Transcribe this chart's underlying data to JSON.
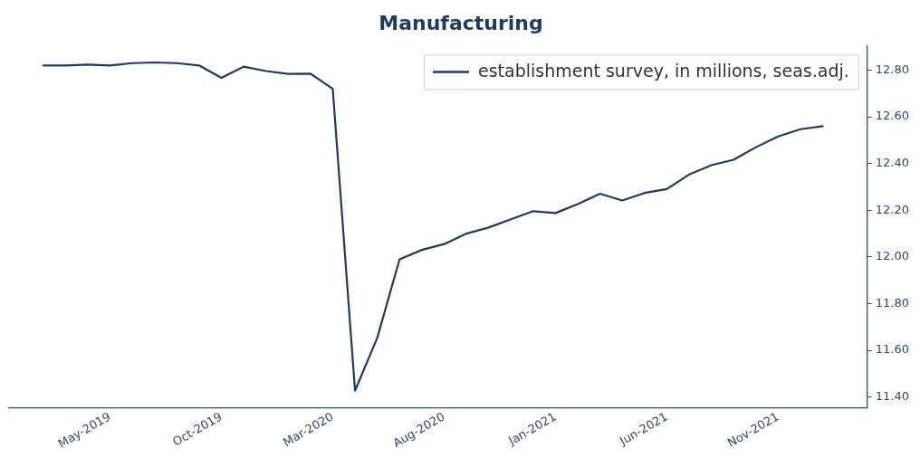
{
  "chart_data": {
    "type": "line",
    "title": "Manufacturing",
    "x": [
      "2019-02",
      "2019-03",
      "2019-04",
      "2019-05",
      "2019-06",
      "2019-07",
      "2019-08",
      "2019-09",
      "2019-10",
      "2019-11",
      "2019-12",
      "2020-01",
      "2020-02",
      "2020-03",
      "2020-04",
      "2020-05",
      "2020-06",
      "2020-07",
      "2020-08",
      "2020-09",
      "2020-10",
      "2020-11",
      "2020-12",
      "2021-01",
      "2021-02",
      "2021-03",
      "2021-04",
      "2021-05",
      "2021-06",
      "2021-07",
      "2021-08",
      "2021-09",
      "2021-10",
      "2021-11",
      "2021-12",
      "2022-01"
    ],
    "series": [
      {
        "name": "establishment survey, in millions, seas.adj.",
        "color": "#1f3a5f",
        "values": [
          12.82,
          12.82,
          12.824,
          12.82,
          12.83,
          12.833,
          12.83,
          12.82,
          12.767,
          12.815,
          12.796,
          12.784,
          12.785,
          12.72,
          11.427,
          11.654,
          11.99,
          12.03,
          12.055,
          12.1,
          12.126,
          12.161,
          12.196,
          12.188,
          12.226,
          12.271,
          12.242,
          12.274,
          12.291,
          12.353,
          12.393,
          12.416,
          12.47,
          12.516,
          12.547,
          12.56
        ]
      }
    ],
    "xlim": [
      "2018-12-15",
      "2022-03-01"
    ],
    "xticks": [
      {
        "value": "2019-05",
        "label": "May-2019"
      },
      {
        "value": "2019-10",
        "label": "Oct-2019"
      },
      {
        "value": "2020-03",
        "label": "Mar-2020"
      },
      {
        "value": "2020-08",
        "label": "Aug-2020"
      },
      {
        "value": "2021-01",
        "label": "Jan-2021"
      },
      {
        "value": "2021-06",
        "label": "Jun-2021"
      },
      {
        "value": "2021-11",
        "label": "Nov-2021"
      }
    ],
    "ylim": [
      11.355,
      12.905
    ],
    "yticks": [
      {
        "value": 11.4,
        "label": "11.40"
      },
      {
        "value": 11.6,
        "label": "11.60"
      },
      {
        "value": 11.8,
        "label": "11.80"
      },
      {
        "value": 12.0,
        "label": "12.00"
      },
      {
        "value": 12.2,
        "label": "12.20"
      },
      {
        "value": 12.4,
        "label": "12.40"
      },
      {
        "value": 12.6,
        "label": "12.60"
      },
      {
        "value": 12.8,
        "label": "12.80"
      }
    ],
    "legend": "top right",
    "marker": "none",
    "line_style": "solid"
  }
}
